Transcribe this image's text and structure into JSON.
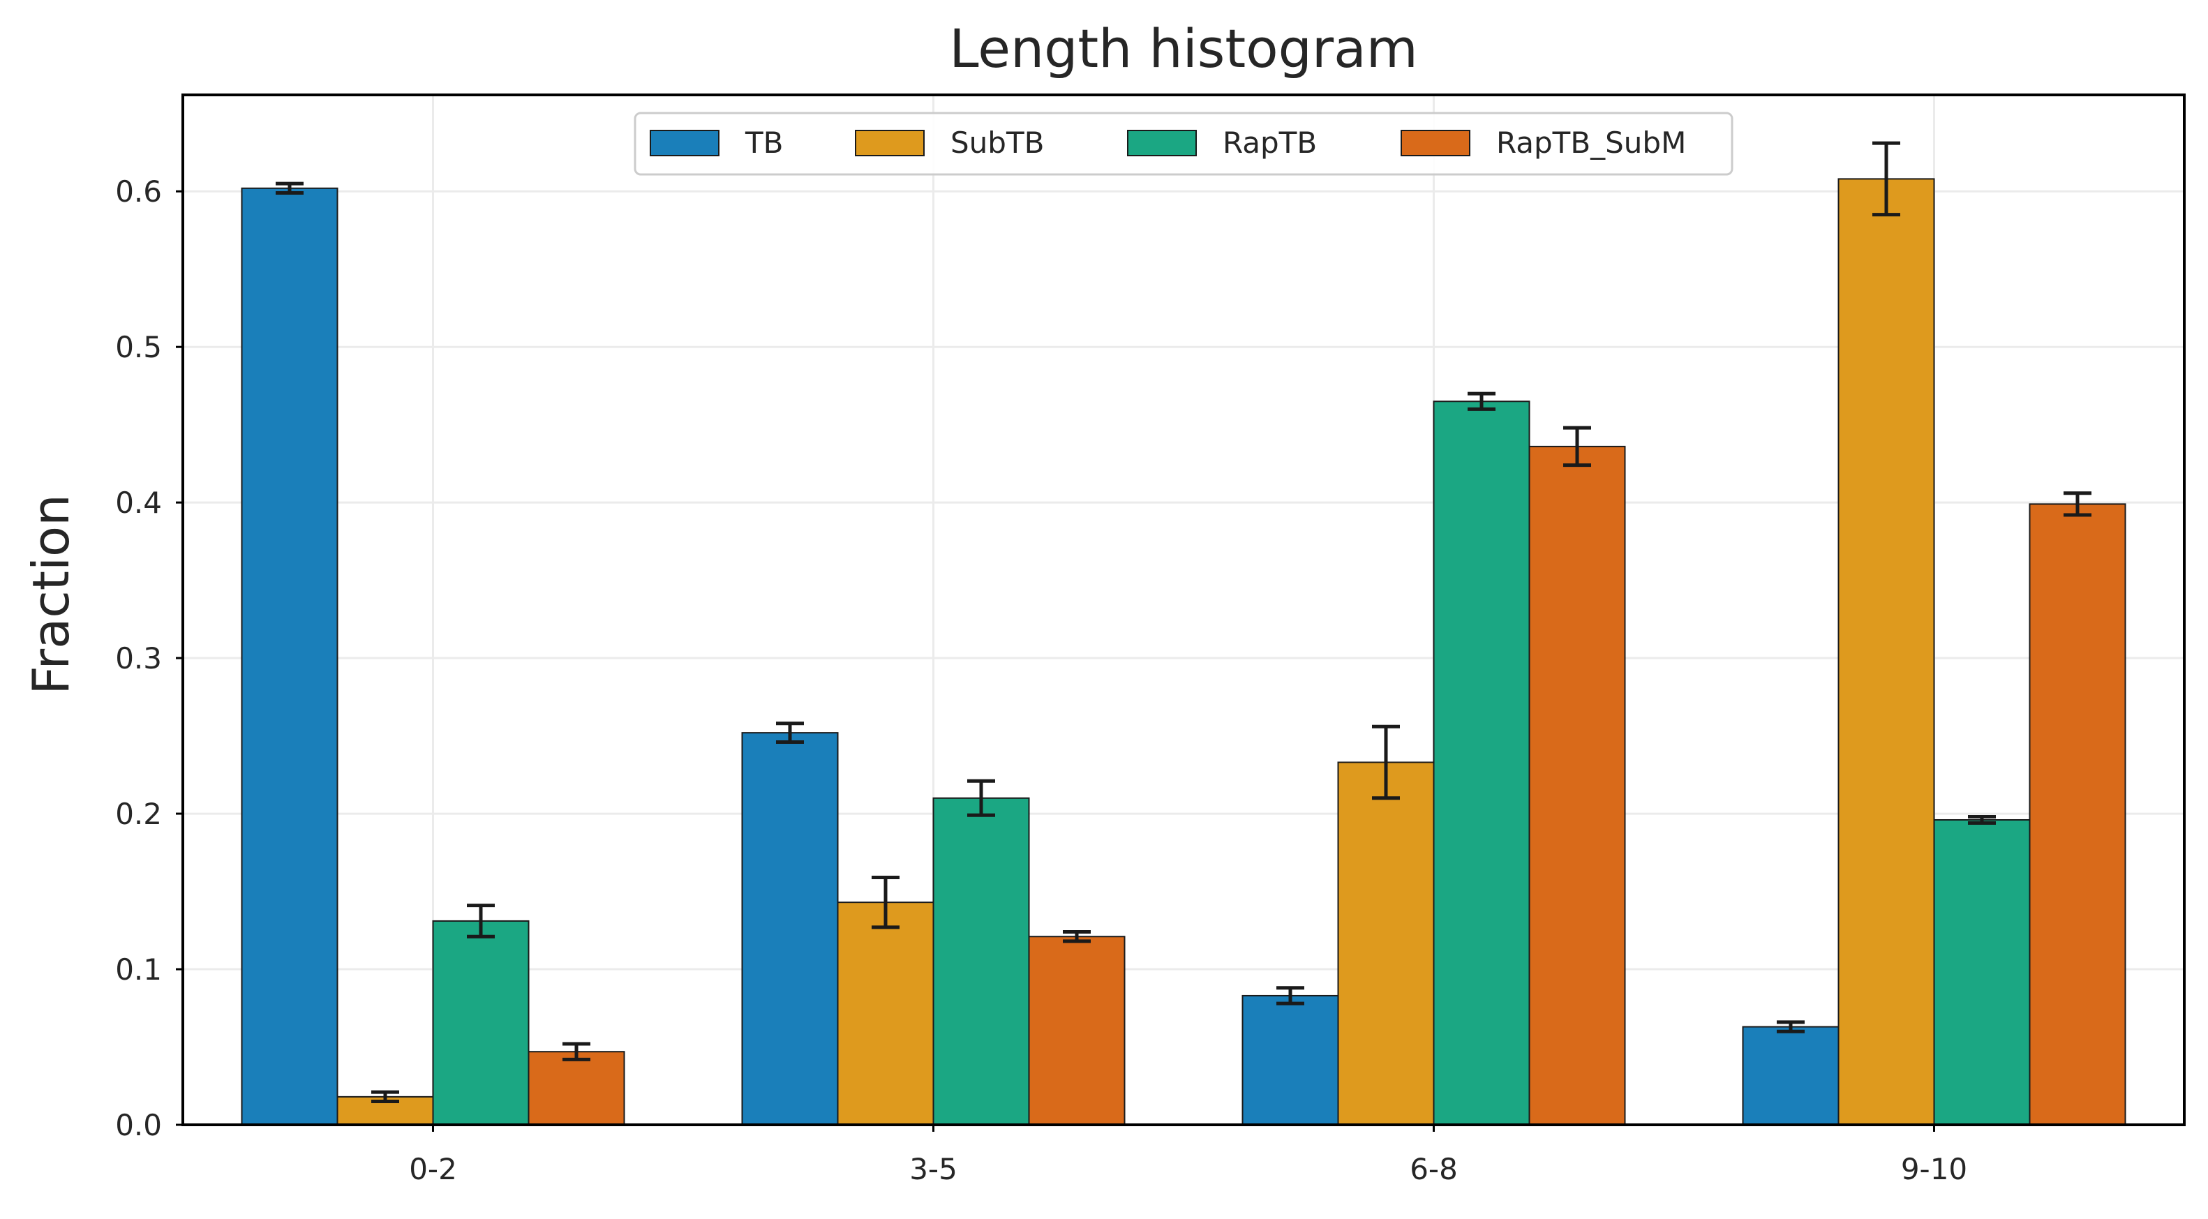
{
  "chart_data": {
    "type": "bar",
    "title": "Length histogram",
    "xlabel": "",
    "ylabel": "Fraction",
    "categories": [
      "0-2",
      "3-5",
      "6-8",
      "9-10"
    ],
    "ylim": [
      0,
      0.662
    ],
    "yticks": [
      0.0,
      0.1,
      0.2,
      0.3,
      0.4,
      0.5,
      0.6
    ],
    "ytick_labels": [
      "0.0",
      "0.1",
      "0.2",
      "0.3",
      "0.4",
      "0.5",
      "0.6"
    ],
    "grid": true,
    "legend": {
      "placement": "top-center",
      "columns": 4
    },
    "series": [
      {
        "name": "TB",
        "color": "#1a7fba",
        "values": [
          0.602,
          0.252,
          0.083,
          0.063
        ],
        "errors": [
          0.003,
          0.006,
          0.005,
          0.003
        ]
      },
      {
        "name": "SubTB",
        "color": "#de9a1e",
        "values": [
          0.018,
          0.143,
          0.233,
          0.608
        ],
        "errors": [
          0.003,
          0.016,
          0.023,
          0.023
        ]
      },
      {
        "name": "RapTB",
        "color": "#1ba783",
        "values": [
          0.131,
          0.21,
          0.465,
          0.196
        ],
        "errors": [
          0.01,
          0.011,
          0.005,
          0.002
        ]
      },
      {
        "name": "RapTB_SubM",
        "color": "#d96a1a",
        "values": [
          0.047,
          0.121,
          0.436,
          0.399
        ],
        "errors": [
          0.005,
          0.003,
          0.012,
          0.007
        ]
      }
    ]
  }
}
